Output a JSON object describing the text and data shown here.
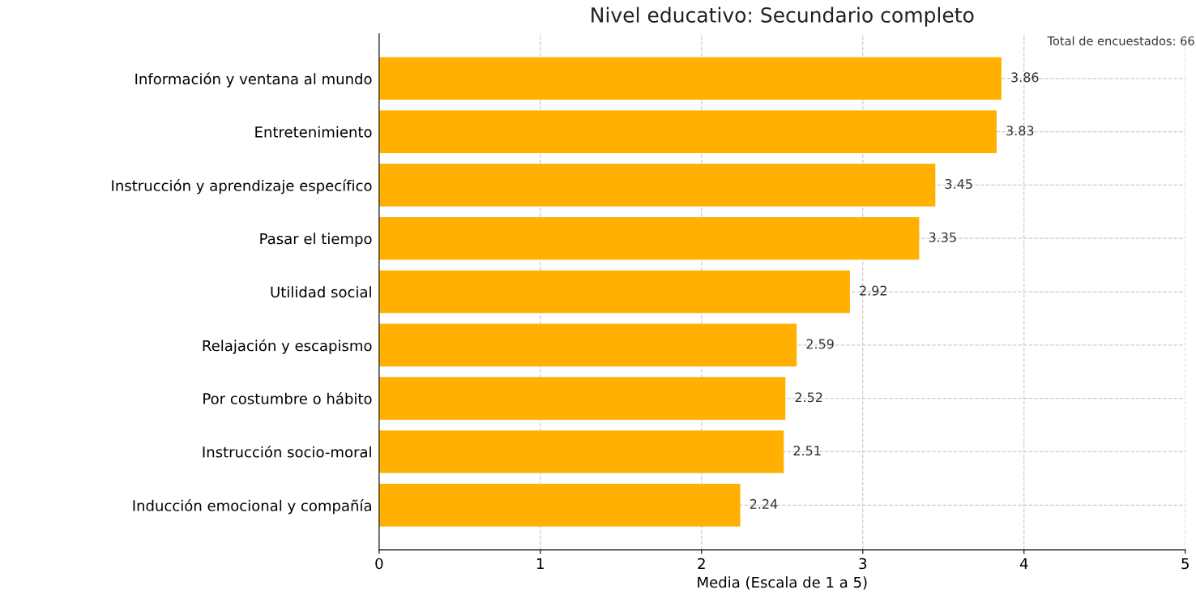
{
  "chart_data": {
    "type": "bar",
    "orientation": "horizontal",
    "title": "Nivel educativo: Secundario completo",
    "xlabel": "Media (Escala de 1 a 5)",
    "categories": [
      "Información y ventana al mundo",
      "Entretenimiento",
      "Instrucción y aprendizaje específico",
      "Pasar el tiempo",
      "Utilidad social",
      "Relajación y escapismo",
      "Por costumbre o hábito",
      "Instrucción socio-moral",
      "Inducción emocional y compañía"
    ],
    "values": [
      3.86,
      3.83,
      3.45,
      3.35,
      2.92,
      2.59,
      2.52,
      2.51,
      2.24
    ],
    "color": "#ffb000",
    "xlim": [
      0,
      5
    ],
    "xticks": [
      0,
      1,
      2,
      3,
      4,
      5
    ],
    "grid": true,
    "data_labels": true,
    "annotations": [
      "Total de encuestados: 66"
    ]
  }
}
